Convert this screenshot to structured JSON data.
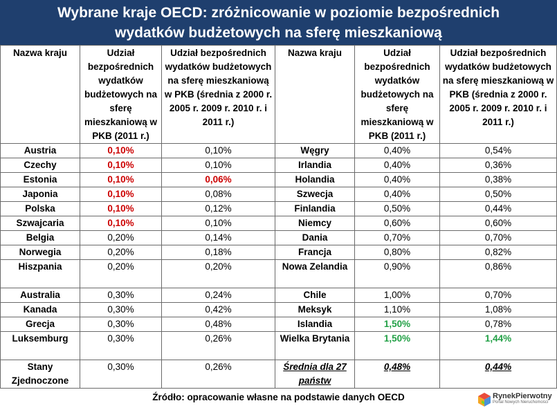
{
  "title": {
    "line1": "Wybrane kraje OECD: zróżnicowanie w poziomie bezpośrednich",
    "line2": "wydatków budżetowych na sferę mieszkaniową"
  },
  "headers": {
    "country": "Nazwa kraju",
    "share_2011": "Udział bezpośrednich wydatków budżetowych na sferę mieszkaniową w PKB (2011 r.)",
    "share_avg": "Udział bezpośrednich wydatków budżetowych na sferę mieszkaniową w PKB (średnia z 2000 r. 2005 r. 2009 r. 2010 r. i 2011 r.)"
  },
  "colors": {
    "banner": "#1f3f6e",
    "red": "#cc0000",
    "green": "#22a046"
  },
  "rows": [
    {
      "l": {
        "country": "Austria",
        "y2011": "0,10%",
        "avg": "0,10%"
      },
      "r": {
        "country": "Węgry",
        "y2011": "0,40%",
        "avg": "0,54%"
      }
    },
    {
      "l": {
        "country": "Czechy",
        "y2011": "0,10%",
        "avg": "0,10%"
      },
      "r": {
        "country": "Irlandia",
        "y2011": "0,40%",
        "avg": "0,36%"
      }
    },
    {
      "l": {
        "country": "Estonia",
        "y2011": "0,10%",
        "avg": "0,06%"
      },
      "r": {
        "country": "Holandia",
        "y2011": "0,40%",
        "avg": "0,38%"
      }
    },
    {
      "l": {
        "country": "Japonia",
        "y2011": "0,10%",
        "avg": "0,08%"
      },
      "r": {
        "country": "Szwecja",
        "y2011": "0,40%",
        "avg": "0,50%"
      }
    },
    {
      "l": {
        "country": "Polska",
        "y2011": "0,10%",
        "avg": "0,12%"
      },
      "r": {
        "country": "Finlandia",
        "y2011": "0,50%",
        "avg": "0,44%"
      }
    },
    {
      "l": {
        "country": "Szwajcaria",
        "y2011": "0,10%",
        "avg": "0,10%"
      },
      "r": {
        "country": "Niemcy",
        "y2011": "0,60%",
        "avg": "0,60%"
      }
    },
    {
      "l": {
        "country": "Belgia",
        "y2011": "0,20%",
        "avg": "0,14%"
      },
      "r": {
        "country": "Dania",
        "y2011": "0,70%",
        "avg": "0,70%"
      }
    },
    {
      "l": {
        "country": "Norwegia",
        "y2011": "0,20%",
        "avg": "0,18%"
      },
      "r": {
        "country": "Francja",
        "y2011": "0,80%",
        "avg": "0,82%"
      }
    },
    {
      "l": {
        "country": "Hiszpania",
        "y2011": "0,20%",
        "avg": "0,20%"
      },
      "r": {
        "country": "Nowa Zelandia",
        "y2011": "0,90%",
        "avg": "0,86%"
      }
    },
    {
      "l": {
        "country": "Australia",
        "y2011": "0,30%",
        "avg": "0,24%"
      },
      "r": {
        "country": "Chile",
        "y2011": "1,00%",
        "avg": "0,70%"
      }
    },
    {
      "l": {
        "country": "Kanada",
        "y2011": "0,30%",
        "avg": "0,42%"
      },
      "r": {
        "country": "Meksyk",
        "y2011": "1,10%",
        "avg": "1,08%"
      }
    },
    {
      "l": {
        "country": "Grecja",
        "y2011": "0,30%",
        "avg": "0,48%"
      },
      "r": {
        "country": "Islandia",
        "y2011": "1,50%",
        "avg": "0,78%"
      }
    },
    {
      "l": {
        "country": "Luksemburg",
        "y2011": "0,30%",
        "avg": "0,26%"
      },
      "r": {
        "country": "Wielka Brytania",
        "y2011": "1,50%",
        "avg": "1,44%"
      }
    },
    {
      "l": {
        "country": "Stany Zjednoczone",
        "y2011": "0,30%",
        "avg": "0,26%"
      },
      "r": {
        "country": "Średnia dla 27 państw",
        "y2011": "0,48%",
        "avg": "0,44%"
      }
    }
  ],
  "source": "Źródło: opracowanie własne na podstawie danych OECD",
  "logo": {
    "name": "RynekPierwotny",
    "tagline": "Portal Nowych Nieruchomości"
  }
}
